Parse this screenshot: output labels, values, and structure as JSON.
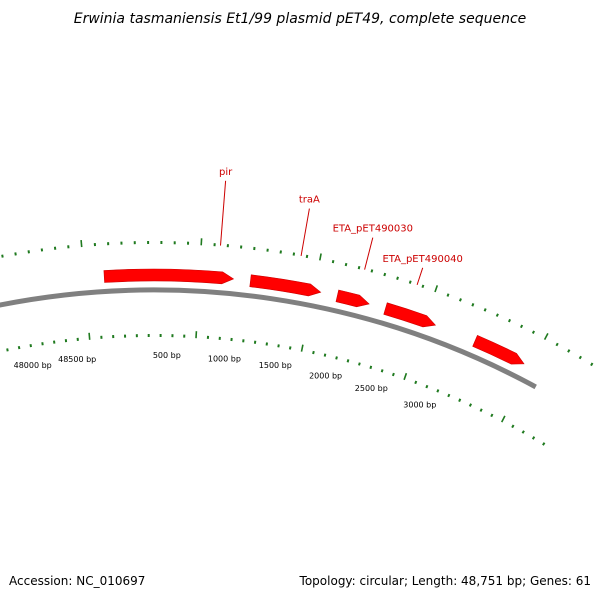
{
  "title": "Erwinia tasmaniensis Et1/99 plasmid pET49, complete sequence",
  "footer": {
    "accession": "Accession: NC_010697",
    "summary": "Topology: circular; Length: 48,751 bp; Genes: 61"
  },
  "colors": {
    "backbone": "#808080",
    "gene_fill": "#ff0000",
    "gene_stroke": "#cc0000",
    "gene_label": "#cc0000",
    "tick_mark": "#1f7a1f"
  },
  "ticks": [
    {
      "label": "48000 bp"
    },
    {
      "label": "48500 bp"
    },
    {
      "label": "500 bp"
    },
    {
      "label": "1000 bp"
    },
    {
      "label": "1500 bp"
    },
    {
      "label": "2000 bp"
    },
    {
      "label": "2500 bp"
    },
    {
      "label": "3000 bp"
    }
  ],
  "genes": [
    {
      "label": "pir"
    },
    {
      "label": "traA"
    },
    {
      "label": "ETA_pET490030"
    },
    {
      "label": "ETA_pET490040"
    },
    {
      "label": ""
    }
  ]
}
